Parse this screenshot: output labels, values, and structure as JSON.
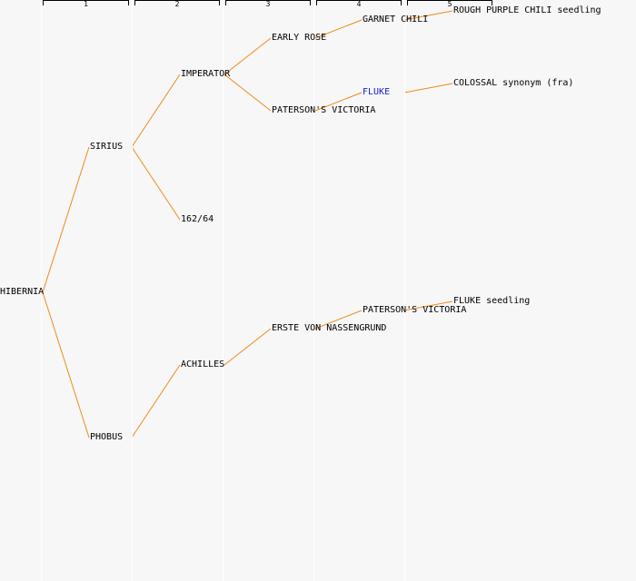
{
  "colors": {
    "edge": "#f08a1c",
    "highlight": "#1a1ac8",
    "background": "#f7f7f7"
  },
  "generations": [
    "1",
    "2",
    "3",
    "4",
    "5"
  ],
  "nodes": [
    {
      "id": "hibernia",
      "label": "HIBERNIA",
      "gen": 0
    },
    {
      "id": "sirius",
      "label": "SIRIUS",
      "gen": 1
    },
    {
      "id": "phobus",
      "label": "PHOBUS",
      "gen": 1
    },
    {
      "id": "imperator",
      "label": "IMPERATOR",
      "gen": 2
    },
    {
      "id": "n162-64",
      "label": "162/64",
      "gen": 2
    },
    {
      "id": "achilles",
      "label": "ACHILLES",
      "gen": 2
    },
    {
      "id": "early-rose",
      "label": "EARLY ROSE",
      "gen": 3
    },
    {
      "id": "patersons-victoria-a",
      "label": "PATERSON'S VICTORIA",
      "gen": 3
    },
    {
      "id": "erste-von-nassengrund",
      "label": "ERSTE VON NASSENGRUND",
      "gen": 3
    },
    {
      "id": "garnet-chili",
      "label": "GARNET CHILI",
      "gen": 4
    },
    {
      "id": "fluke",
      "label": "FLUKE",
      "gen": 4,
      "highlight": true
    },
    {
      "id": "patersons-victoria-b",
      "label": "PATERSON'S VICTORIA",
      "gen": 4
    },
    {
      "id": "rough-purple-chili",
      "label": "ROUGH PURPLE CHILI seedling",
      "gen": 5
    },
    {
      "id": "colossal",
      "label": "COLOSSAL synonym (fra)",
      "gen": 5
    },
    {
      "id": "fluke-seedling",
      "label": "FLUKE seedling",
      "gen": 5
    }
  ],
  "edges": [
    [
      "hibernia",
      "sirius"
    ],
    [
      "hibernia",
      "phobus"
    ],
    [
      "sirius",
      "imperator"
    ],
    [
      "sirius",
      "n162-64"
    ],
    [
      "phobus",
      "achilles"
    ],
    [
      "imperator",
      "early-rose"
    ],
    [
      "imperator",
      "patersons-victoria-a"
    ],
    [
      "achilles",
      "erste-von-nassengrund"
    ],
    [
      "early-rose",
      "garnet-chili"
    ],
    [
      "patersons-victoria-a",
      "fluke"
    ],
    [
      "erste-von-nassengrund",
      "patersons-victoria-b"
    ],
    [
      "garnet-chili",
      "rough-purple-chili"
    ],
    [
      "fluke",
      "colossal"
    ],
    [
      "patersons-victoria-b",
      "fluke-seedling"
    ]
  ]
}
